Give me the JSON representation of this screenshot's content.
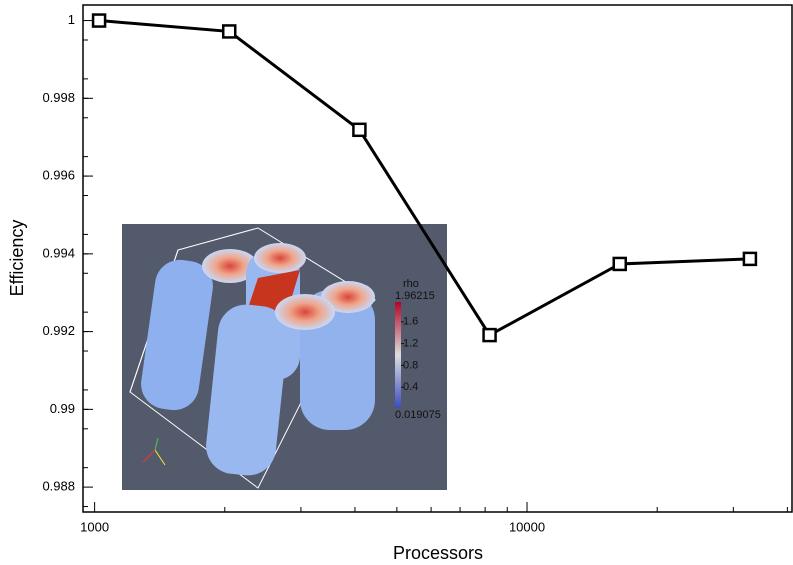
{
  "chart_data": {
    "type": "line",
    "x_label": "Processors",
    "y_label": "Efficiency",
    "x": [
      1024,
      2048,
      4096,
      8192,
      16384,
      32768
    ],
    "series": [
      {
        "color": "#000000",
        "values": [
          1.0,
          0.99972,
          0.99719,
          0.99191,
          0.99374,
          0.99387
        ]
      }
    ],
    "xlog": true,
    "xlim": [
      940,
      41000
    ],
    "xticks": [
      1000,
      10000
    ],
    "xminorticks": [
      2000,
      3000,
      4000,
      5000,
      6000,
      7000,
      8000,
      9000,
      20000,
      30000,
      40000
    ],
    "ylim": [
      0.98736,
      1.0004
    ],
    "yticks": [
      0.988,
      0.99,
      0.992,
      0.994,
      0.996,
      0.998,
      1
    ],
    "yminorticks": [
      0.9875,
      0.9885,
      0.9895,
      0.99,
      0.9905,
      0.9915,
      0.992,
      0.9925,
      0.9935,
      0.994,
      0.9945,
      0.9955,
      0.996,
      0.9965,
      0.9975,
      0.998,
      0.9985,
      0.9995
    ],
    "inset": {
      "colorbar": {
        "title": "rho",
        "range": [
          0.019075,
          1.96215
        ],
        "ticks": [
          0.4,
          0.8,
          1.2,
          1.6
        ]
      }
    }
  }
}
